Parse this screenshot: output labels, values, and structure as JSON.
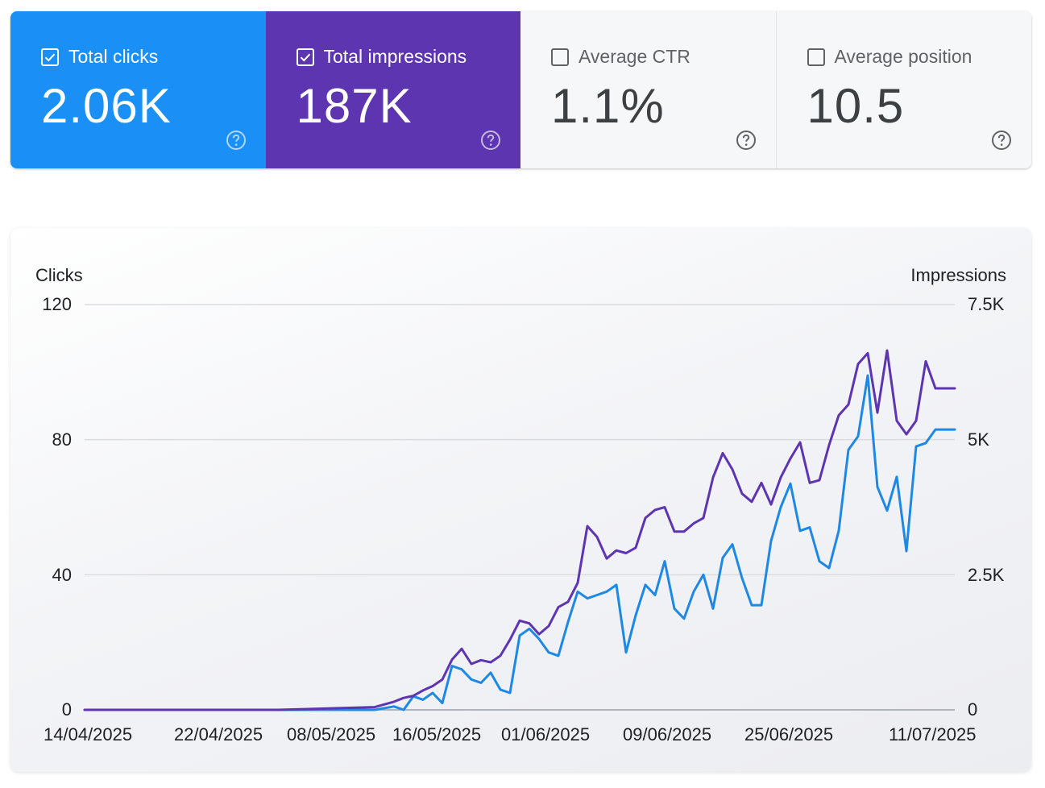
{
  "metrics": [
    {
      "id": "clicks",
      "label": "Total clicks",
      "value": "2.06K",
      "checked": true,
      "color": "#1a8ff5"
    },
    {
      "id": "impressions",
      "label": "Total impressions",
      "value": "187K",
      "checked": true,
      "color": "#5e35b1"
    },
    {
      "id": "ctr",
      "label": "Average CTR",
      "value": "1.1%",
      "checked": false,
      "color": "#f6f7f9"
    },
    {
      "id": "position",
      "label": "Average position",
      "value": "10.5",
      "checked": false,
      "color": "#f6f7f9"
    }
  ],
  "icons": {
    "checkbox": "checkbox-icon",
    "help": "help-circle-icon"
  },
  "chart_data": {
    "type": "line",
    "ylabel_left": "Clicks",
    "ylabel_right": "Impressions",
    "left_ticks": [
      "120",
      "80",
      "40",
      "0"
    ],
    "right_ticks": [
      "7.5K",
      "5K",
      "2.5K",
      "0"
    ],
    "left_ylim": [
      0,
      120
    ],
    "right_ylim": [
      0,
      7500
    ],
    "x_tick_labels": [
      "14/04/2025",
      "22/04/2025",
      "08/05/2025",
      "16/05/2025",
      "01/06/2025",
      "09/06/2025",
      "25/06/2025",
      "11/07/2025"
    ],
    "grid": true,
    "series": [
      {
        "name": "Clicks",
        "axis": "left",
        "color": "#1e88e5",
        "x": [
          "14/04/2025",
          "24/04/2025",
          "04/05/2025",
          "14/05/2025",
          "16/05/2025",
          "17/05/2025",
          "18/05/2025",
          "19/05/2025",
          "20/05/2025",
          "21/05/2025",
          "22/05/2025",
          "23/05/2025",
          "24/05/2025",
          "25/05/2025",
          "26/05/2025",
          "27/05/2025",
          "28/05/2025",
          "29/05/2025",
          "30/05/2025",
          "31/05/2025",
          "01/06/2025",
          "02/06/2025",
          "03/06/2025",
          "04/06/2025",
          "05/06/2025",
          "06/06/2025",
          "07/06/2025",
          "08/06/2025",
          "09/06/2025",
          "10/06/2025",
          "11/06/2025",
          "12/06/2025",
          "13/06/2025",
          "14/06/2025",
          "15/06/2025",
          "16/06/2025",
          "17/06/2025",
          "18/06/2025",
          "19/06/2025",
          "20/06/2025",
          "21/06/2025",
          "22/06/2025",
          "23/06/2025",
          "24/06/2025",
          "25/06/2025",
          "26/06/2025",
          "27/06/2025",
          "28/06/2025",
          "29/06/2025",
          "30/06/2025",
          "01/07/2025",
          "02/07/2025",
          "03/07/2025",
          "04/07/2025",
          "05/07/2025",
          "06/07/2025",
          "07/07/2025",
          "08/07/2025",
          "09/07/2025",
          "10/07/2025",
          "11/07/2025",
          "12/07/2025",
          "13/07/2025"
        ],
        "values": [
          0,
          0,
          0,
          0,
          1,
          0,
          4,
          3,
          5,
          2,
          13,
          12,
          9,
          8,
          11,
          6,
          5,
          22,
          24,
          21,
          17,
          16,
          26,
          35,
          33,
          34,
          35,
          37,
          17,
          28,
          37,
          34,
          44,
          30,
          27,
          35,
          40,
          30,
          45,
          49,
          39,
          31,
          31,
          50,
          60,
          67,
          53,
          54,
          44,
          42,
          53,
          77,
          81,
          99,
          66,
          59,
          69,
          47,
          78,
          79,
          83,
          83,
          83
        ]
      },
      {
        "name": "Impressions",
        "axis": "right",
        "color": "#5e35b1",
        "x": [
          "14/04/2025",
          "24/04/2025",
          "04/05/2025",
          "14/05/2025",
          "16/05/2025",
          "17/05/2025",
          "18/05/2025",
          "19/05/2025",
          "20/05/2025",
          "21/05/2025",
          "22/05/2025",
          "23/05/2025",
          "24/05/2025",
          "25/05/2025",
          "26/05/2025",
          "27/05/2025",
          "28/05/2025",
          "29/05/2025",
          "30/05/2025",
          "31/05/2025",
          "01/06/2025",
          "02/06/2025",
          "03/06/2025",
          "04/06/2025",
          "05/06/2025",
          "06/06/2025",
          "07/06/2025",
          "08/06/2025",
          "09/06/2025",
          "10/06/2025",
          "11/06/2025",
          "12/06/2025",
          "13/06/2025",
          "14/06/2025",
          "15/06/2025",
          "16/06/2025",
          "17/06/2025",
          "18/06/2025",
          "19/06/2025",
          "20/06/2025",
          "21/06/2025",
          "22/06/2025",
          "23/06/2025",
          "24/06/2025",
          "25/06/2025",
          "26/06/2025",
          "27/06/2025",
          "28/06/2025",
          "29/06/2025",
          "30/06/2025",
          "01/07/2025",
          "02/07/2025",
          "03/07/2025",
          "04/07/2025",
          "05/07/2025",
          "06/07/2025",
          "07/07/2025",
          "08/07/2025",
          "09/07/2025",
          "10/07/2025",
          "11/07/2025",
          "12/07/2025",
          "13/07/2025"
        ],
        "values": [
          0,
          0,
          0,
          50,
          150,
          220,
          260,
          360,
          440,
          560,
          930,
          1130,
          850,
          920,
          880,
          1000,
          1300,
          1650,
          1600,
          1400,
          1550,
          1900,
          2000,
          2350,
          3400,
          3200,
          2800,
          2950,
          2900,
          3000,
          3550,
          3700,
          3750,
          3300,
          3300,
          3450,
          3550,
          4300,
          4750,
          4450,
          4000,
          3850,
          4200,
          3800,
          4300,
          4650,
          4950,
          4200,
          4250,
          4900,
          5450,
          5650,
          6400,
          6600,
          5500,
          6650,
          5350,
          5100,
          5350,
          6450,
          5950,
          5950,
          5950
        ]
      }
    ]
  }
}
